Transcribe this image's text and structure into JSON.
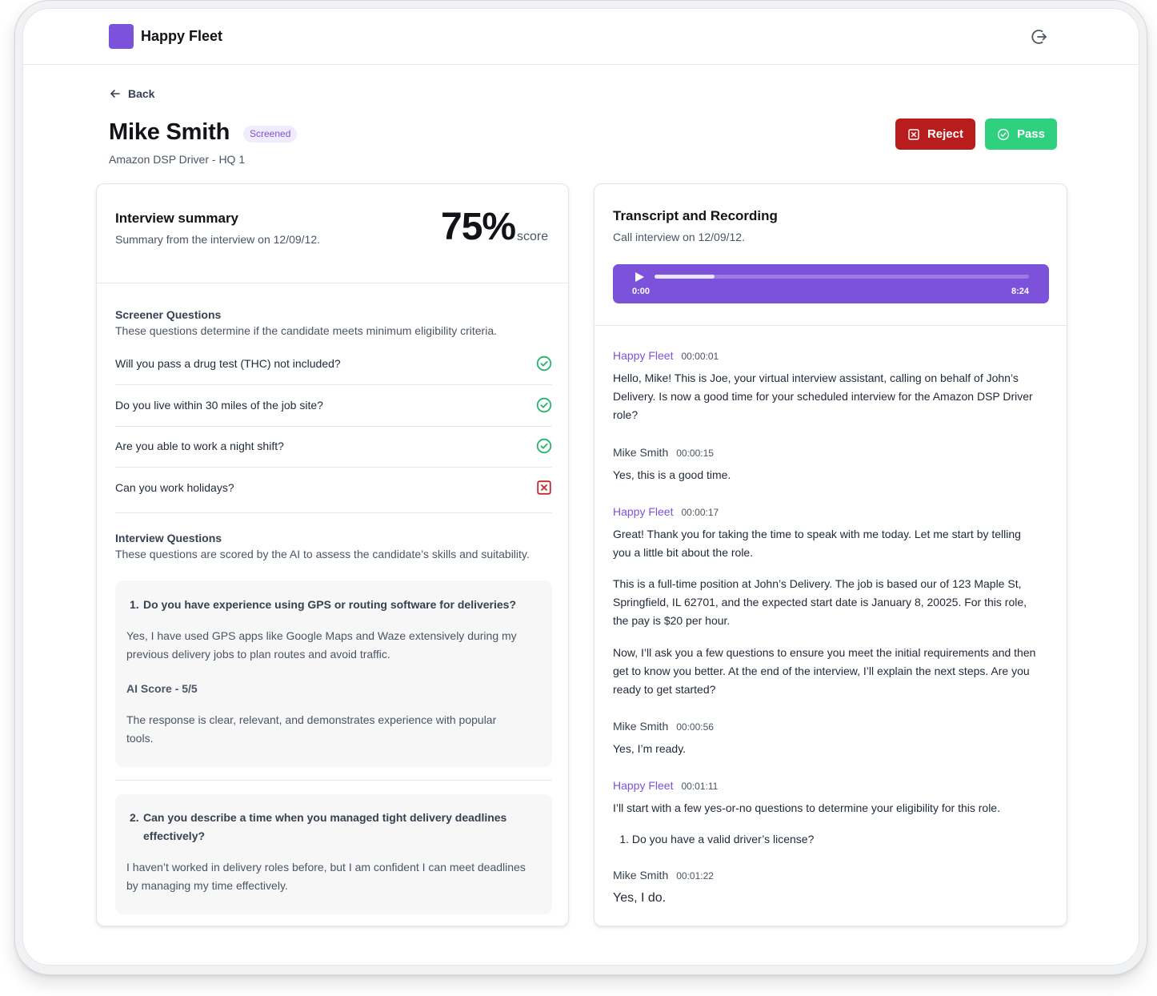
{
  "app": {
    "brand": "Happy Fleet",
    "accent_color": "#7b52d9",
    "logout_icon": "logout-icon"
  },
  "header": {
    "back_label": "Back",
    "candidate_name": "Mike Smith",
    "status_badge": "Screened",
    "role": "Amazon DSP Driver - HQ 1",
    "reject_label": "Reject",
    "pass_label": "Pass",
    "reject_color": "#b91c1c",
    "pass_color": "#2fd07e"
  },
  "summary": {
    "title": "Interview summary",
    "subtitle": "Summary from the interview on 12/09/12.",
    "score": "75%",
    "score_label": "score",
    "screener": {
      "title": "Screener Questions",
      "subtitle": "These questions determine if the candidate meets minimum eligibility criteria.",
      "questions": [
        {
          "text": "Will you pass a drug test (THC) not included?",
          "result": "pass"
        },
        {
          "text": "Do you live within 30 miles of the job site?",
          "result": "pass"
        },
        {
          "text": "Are you able to work a night shift?",
          "result": "pass"
        },
        {
          "text": "Can you work holidays?",
          "result": "fail"
        }
      ]
    },
    "interview": {
      "title": "Interview Questions",
      "subtitle": "These questions are scored by the AI to assess the candidate’s skills and suitability.",
      "items": [
        {
          "number": "1.",
          "question": "Do you have experience using GPS or routing software for deliveries?",
          "answer_line1": "Yes, I have used GPS apps like Google Maps and Waze extensively during my",
          "answer_line2": "previous delivery jobs to plan routes and avoid traffic.",
          "ai_score": "AI Score - 5/5",
          "rationale_line1": "The response is clear, relevant, and demonstrates experience with popular",
          "rationale_line2": "tools."
        },
        {
          "number": "2.",
          "question_line1": "Can you describe a time when you managed tight delivery deadlines",
          "question_line2": "effectively?",
          "answer_line1": "I haven’t worked in delivery roles before, but I am confident I can meet deadlines",
          "answer_line2": "by managing my time effectively."
        }
      ]
    }
  },
  "transcript": {
    "title": "Transcript and Recording",
    "subtitle": "Call interview on 12/09/12.",
    "player": {
      "current_time": "0:00",
      "total_time": "8:24",
      "progress": 0.16
    },
    "entries": [
      {
        "speaker": "Happy Fleet",
        "time": "00:00:01",
        "lines": [
          "Hello, Mike! This is Joe, your virtual interview assistant, calling on behalf of John’s",
          "Delivery. Is now a good time for your scheduled interview for the Amazon DSP Driver",
          "role?"
        ]
      },
      {
        "speaker": "Mike Smith",
        "time": "00:00:15",
        "lines": [
          "Yes, this is a good time."
        ]
      },
      {
        "speaker": "Happy Fleet",
        "time": "00:00:17",
        "p1": [
          "Great! Thank you for taking the time to speak with me today. Let me start by telling",
          "you a little bit about the role."
        ],
        "p2": [
          "This is a full-time position at John’s Delivery. The job is based our of 123 Maple St,",
          "Springfield, IL 62701, and the expected start date is January 8, 20025. For this role,",
          "the pay is $20 per hour."
        ],
        "p3": [
          "Now, I’ll ask you a few questions to ensure you meet the initial requirements and then",
          "get to know you better. At the end of the interview, I’ll explain the next steps. Are you",
          "ready to get started?"
        ]
      },
      {
        "speaker": "Mike Smith",
        "time": "00:00:56",
        "lines": [
          "Yes, I’m ready."
        ]
      },
      {
        "speaker": "Happy Fleet",
        "time": "00:01:11",
        "lines": [
          "I’ll start with a few yes-or-no questions to determine your eligibility for this role."
        ],
        "list_num": "1.",
        "list_text": "Do you have a valid driver’s license?"
      },
      {
        "speaker": "Mike Smith",
        "time": "00:01:22",
        "lines": [
          "Yes, I do."
        ]
      }
    ]
  }
}
